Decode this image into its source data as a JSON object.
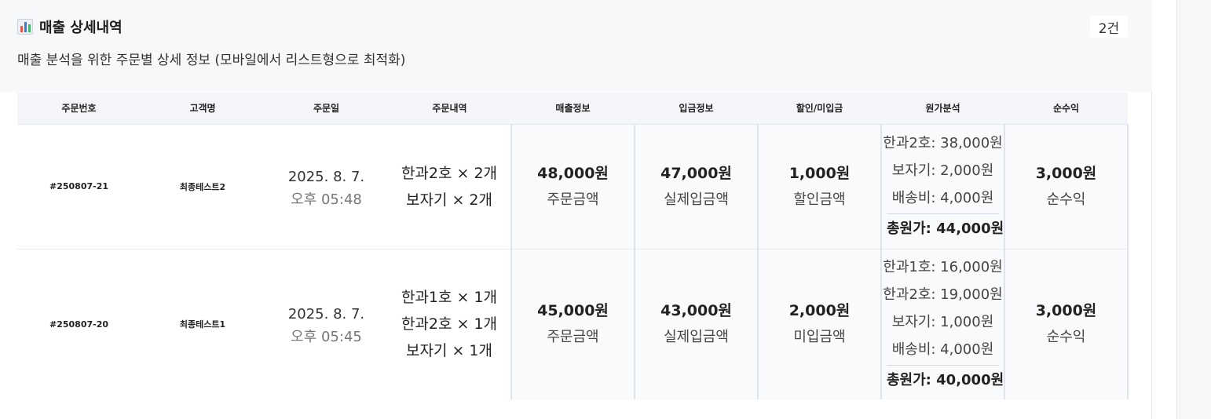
{
  "section": {
    "title": "매출 상세내역",
    "icon": "bar-chart-icon",
    "count_label": "2건",
    "subtitle": "매출 분석을 위한 주문별 상세 정보 (모바일에서 리스트형으로 최적화)"
  },
  "table": {
    "headers": [
      "주문번호",
      "고객명",
      "주문일",
      "주문내역",
      "매출정보",
      "입금정보",
      "할인/미입금",
      "원가분석",
      "순수익"
    ],
    "rows": [
      {
        "order_no": "#250807-21",
        "customer": "최종테스트2",
        "date": "2025. 8. 7.",
        "time": "오후 05:48",
        "items": [
          "한과2호 × 2개",
          "보자기 × 2개"
        ],
        "sales_amount": "48,000원",
        "sales_label": "주문금액",
        "deposit_amount": "47,000원",
        "deposit_label": "실제입금액",
        "discount_amount": "1,000원",
        "discount_label": "할인금액",
        "cost_items": [
          "한과2호: 38,000원",
          "보자기: 2,000원",
          "배송비: 4,000원"
        ],
        "cost_total": "총원가: 44,000원",
        "profit_amount": "3,000원",
        "profit_label": "순수익"
      },
      {
        "order_no": "#250807-20",
        "customer": "최종테스트1",
        "date": "2025. 8. 7.",
        "time": "오후 05:45",
        "items": [
          "한과1호 × 1개",
          "한과2호 × 1개",
          "보자기 × 1개"
        ],
        "sales_amount": "45,000원",
        "sales_label": "주문금액",
        "deposit_amount": "43,000원",
        "deposit_label": "실제입금액",
        "discount_amount": "2,000원",
        "discount_label": "미입금액",
        "cost_items": [
          "한과1호: 16,000원",
          "한과2호: 19,000원",
          "보자기: 1,000원",
          "배송비: 4,000원"
        ],
        "cost_total": "총원가: 40,000원",
        "profit_amount": "3,000원",
        "profit_label": "순수익"
      }
    ]
  },
  "colors": {
    "header_bg": "#f7f8fa",
    "table_header_bg": "#f4f5f8",
    "boxed_cell_bg": "#f9fafc",
    "border": "#dfe3ea"
  }
}
